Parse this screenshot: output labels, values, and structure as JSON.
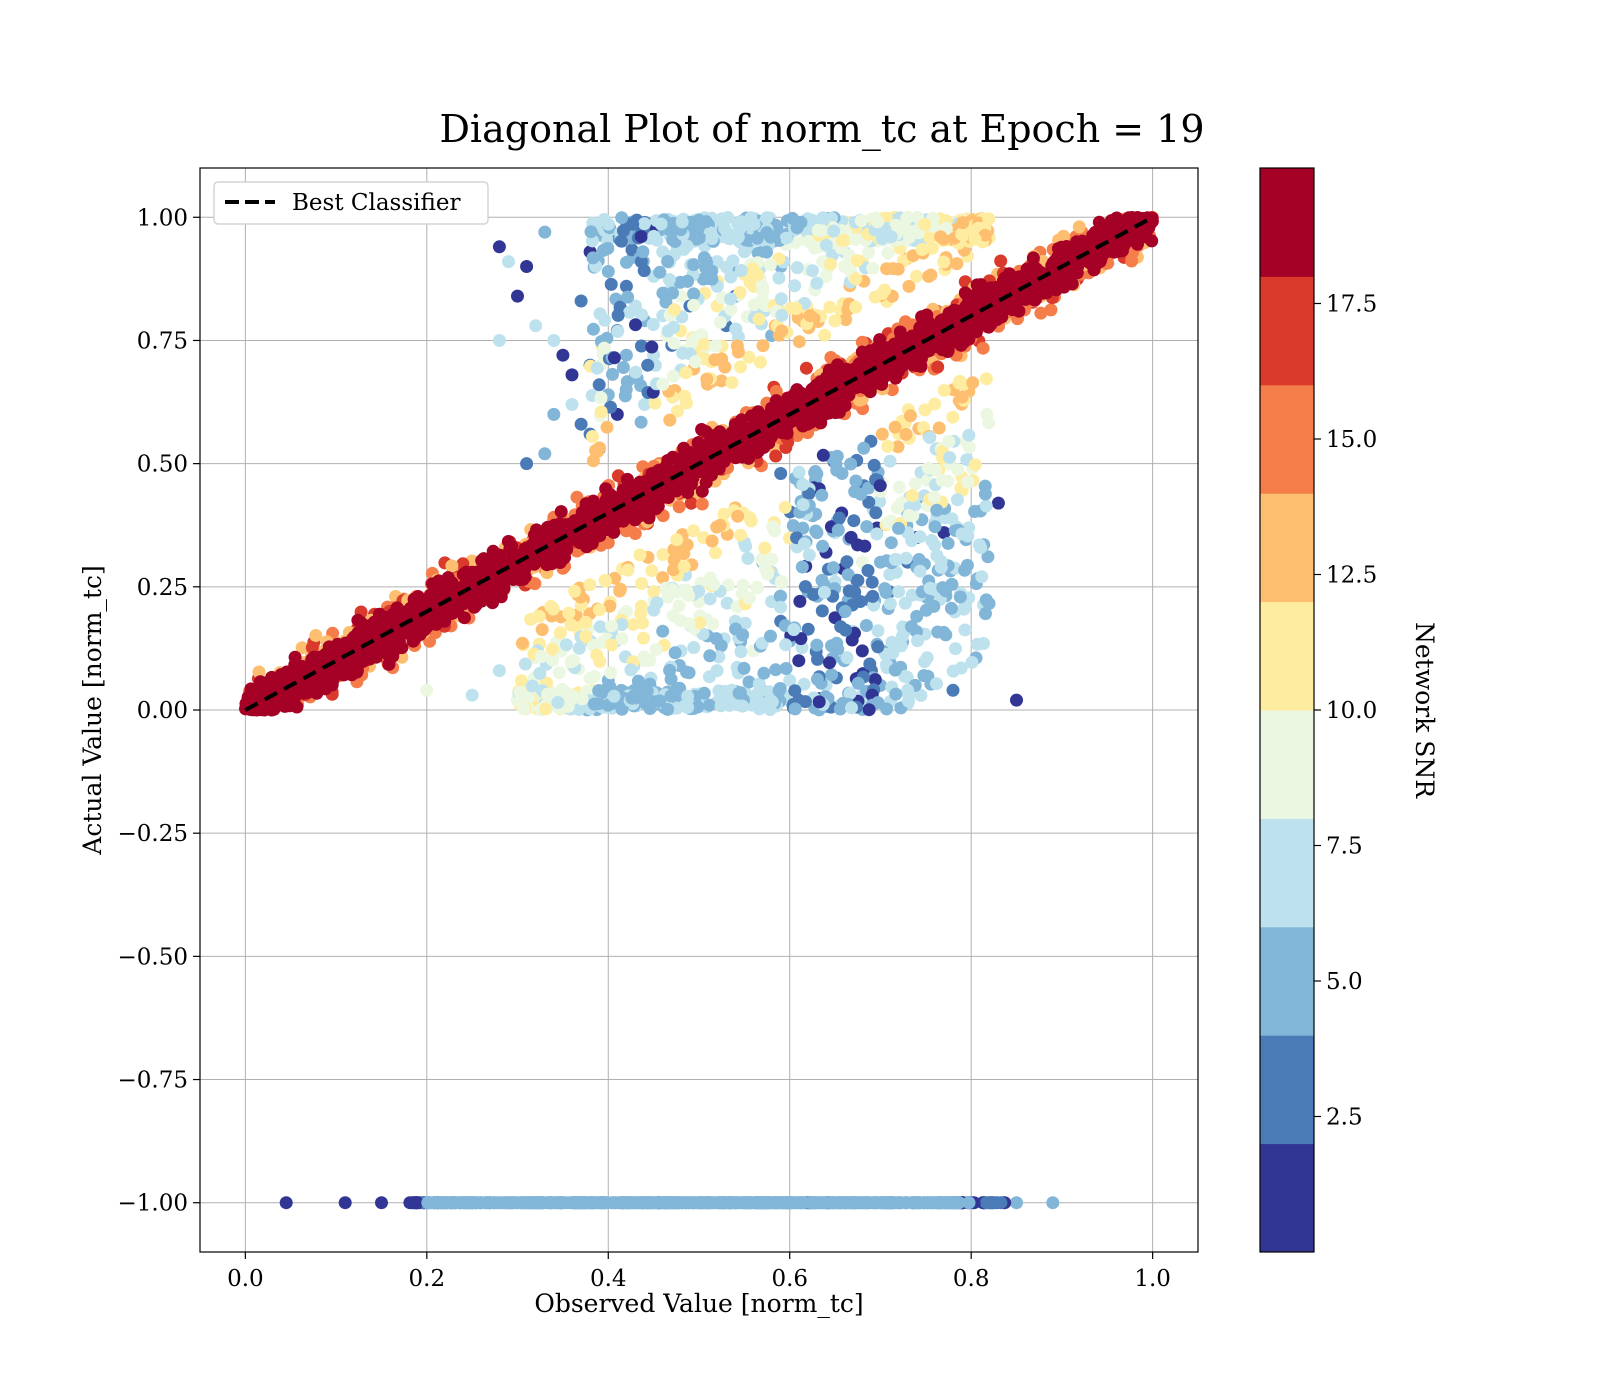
{
  "chart_data": {
    "type": "scatter",
    "title": "Diagonal Plot of norm_tc at Epoch = 19",
    "xlabel": "Observed Value [norm_tc]",
    "ylabel": "Actual Value [norm_tc]",
    "xlim": [
      -0.05,
      1.05
    ],
    "ylim": [
      -1.1,
      1.1
    ],
    "xticks": [
      0.0,
      0.2,
      0.4,
      0.6,
      0.8,
      1.0
    ],
    "xtick_labels": [
      "0.0",
      "0.2",
      "0.4",
      "0.6",
      "0.8",
      "1.0"
    ],
    "yticks": [
      1.0,
      0.75,
      0.5,
      0.25,
      0.0,
      -0.25,
      -0.5,
      -0.75,
      -1.0
    ],
    "ytick_labels": [
      "1.00",
      "0.75",
      "0.50",
      "0.25",
      "0.00",
      "−0.25",
      "−0.50",
      "−0.75",
      "−1.00"
    ],
    "grid": true,
    "legend": {
      "location": "top-left",
      "entries": [
        {
          "label": "Best Classifier",
          "style": "dashed",
          "color": "#000000"
        }
      ]
    },
    "reference_line": {
      "label": "Best Classifier",
      "x": [
        0.0,
        1.0
      ],
      "y": [
        0.0,
        1.0
      ]
    },
    "colorbar": {
      "label": "Network SNR",
      "range": [
        0,
        20
      ],
      "ticks": [
        2.5,
        5.0,
        7.5,
        10.0,
        12.5,
        15.0,
        17.5
      ],
      "tick_labels": [
        "2.5",
        "5.0",
        "7.5",
        "10.0",
        "12.5",
        "15.0",
        "17.5"
      ],
      "bins": [
        {
          "from": 0,
          "to": 2,
          "color": "#313695"
        },
        {
          "from": 2,
          "to": 4,
          "color": "#4a7bb7"
        },
        {
          "from": 4,
          "to": 6,
          "color": "#82b6d8"
        },
        {
          "from": 6,
          "to": 8,
          "color": "#bde2ee"
        },
        {
          "from": 8,
          "to": 10,
          "color": "#ecf7e2"
        },
        {
          "from": 10,
          "to": 12,
          "color": "#feeda1"
        },
        {
          "from": 12,
          "to": 14,
          "color": "#fdbf6f"
        },
        {
          "from": 14,
          "to": 16,
          "color": "#f57d4a"
        },
        {
          "from": 16,
          "to": 18,
          "color": "#d93a2b"
        },
        {
          "from": 18,
          "to": 20,
          "color": "#a50026"
        }
      ]
    },
    "series": [
      {
        "points": [
          [
            0.28,
            0.94
          ],
          [
            0.29,
            0.91
          ],
          [
            0.31,
            0.9
          ],
          [
            0.32,
            0.78
          ],
          [
            0.33,
            0.97
          ],
          [
            0.34,
            0.75
          ],
          [
            0.35,
            0.72
          ],
          [
            0.36,
            0.62
          ],
          [
            0.37,
            0.58
          ],
          [
            0.38,
            0.56
          ],
          [
            0.39,
            0.53
          ],
          [
            0.33,
            0.52
          ],
          [
            0.31,
            0.5
          ],
          [
            0.36,
            0.68
          ],
          [
            0.38,
            0.7
          ],
          [
            0.4,
            0.64
          ],
          [
            0.41,
            0.6
          ],
          [
            0.42,
            0.86
          ],
          [
            0.43,
            0.82
          ],
          [
            0.44,
            0.79
          ],
          [
            0.45,
            0.88
          ],
          [
            0.46,
            0.93
          ],
          [
            0.47,
            0.74
          ],
          [
            0.48,
            0.69
          ],
          [
            0.5,
            0.96
          ],
          [
            0.52,
            0.91
          ],
          [
            0.54,
            0.84
          ],
          [
            0.56,
            0.8
          ],
          [
            0.58,
            0.76
          ],
          [
            0.6,
            0.97
          ],
          [
            0.63,
            0.95
          ],
          [
            0.66,
            0.93
          ],
          [
            0.69,
            0.97
          ],
          [
            0.72,
            0.96
          ],
          [
            0.28,
            0.75
          ],
          [
            0.3,
            0.84
          ],
          [
            0.34,
            0.6
          ],
          [
            0.39,
            0.66
          ],
          [
            0.42,
            0.72
          ],
          [
            0.44,
            0.62
          ],
          [
            0.47,
            0.86
          ],
          [
            0.49,
            0.82
          ],
          [
            0.51,
            0.89
          ],
          [
            0.53,
            0.78
          ],
          [
            0.55,
            0.93
          ],
          [
            0.57,
            0.86
          ],
          [
            0.59,
            0.9
          ],
          [
            0.61,
            0.82
          ],
          [
            0.64,
            0.88
          ],
          [
            0.68,
            0.91
          ],
          [
            0.37,
            0.83
          ],
          [
            0.38,
            0.93
          ],
          [
            0.4,
            0.89
          ],
          [
            0.41,
            0.77
          ],
          [
            0.43,
            0.68
          ],
          [
            0.45,
            0.72
          ],
          [
            0.46,
            0.8
          ],
          [
            0.48,
            0.84
          ],
          [
            0.5,
            0.88
          ],
          [
            0.52,
            0.82
          ],
          [
            0.55,
            0.34
          ],
          [
            0.57,
            0.3
          ],
          [
            0.58,
            0.22
          ],
          [
            0.59,
            0.18
          ],
          [
            0.6,
            0.14
          ],
          [
            0.61,
            0.1
          ],
          [
            0.62,
            0.4
          ],
          [
            0.63,
            0.36
          ],
          [
            0.64,
            0.32
          ],
          [
            0.65,
            0.26
          ],
          [
            0.66,
            0.2
          ],
          [
            0.67,
            0.16
          ],
          [
            0.68,
            0.12
          ],
          [
            0.69,
            0.08
          ],
          [
            0.7,
            0.3
          ],
          [
            0.71,
            0.24
          ],
          [
            0.72,
            0.37
          ],
          [
            0.73,
            0.4
          ],
          [
            0.74,
            0.35
          ],
          [
            0.75,
            0.42
          ],
          [
            0.76,
            0.38
          ],
          [
            0.77,
            0.36
          ],
          [
            0.78,
            0.04
          ],
          [
            0.83,
            0.42
          ],
          [
            0.85,
            0.02
          ],
          [
            0.74,
            0.19
          ],
          [
            0.7,
            0.05
          ],
          [
            0.64,
            0.05
          ],
          [
            0.61,
            0.02
          ],
          [
            0.56,
            0.01
          ],
          [
            0.5,
            0.02
          ],
          [
            0.45,
            0.01
          ],
          [
            0.4,
            0.02
          ],
          [
            0.35,
            0.01
          ],
          [
            0.3,
            0.02
          ],
          [
            0.25,
            0.03
          ],
          [
            0.2,
            0.04
          ],
          [
            0.52,
            0.08
          ],
          [
            0.48,
            0.12
          ],
          [
            0.44,
            0.1
          ],
          [
            0.4,
            0.06
          ],
          [
            0.36,
            0.09
          ],
          [
            0.33,
            0.05
          ],
          [
            0.28,
            0.08
          ],
          [
            0.54,
            0.18
          ],
          [
            0.5,
            0.22
          ],
          [
            0.46,
            0.16
          ],
          [
            0.42,
            0.2
          ],
          [
            0.38,
            0.14
          ],
          [
            0.58,
            0.28
          ],
          [
            0.56,
            0.12
          ],
          [
            0.62,
            0.24
          ],
          [
            0.6,
            0.06
          ],
          [
            0.66,
            0.1
          ],
          [
            0.68,
            0.3
          ],
          [
            0.65,
            0.36
          ],
          [
            0.62,
            0.44
          ],
          [
            0.59,
            0.48
          ],
          [
            0.72,
            0.24
          ],
          [
            0.73,
            0.3
          ]
        ],
        "snr": [
          1,
          6,
          1,
          6,
          4,
          6,
          1,
          7,
          3,
          2,
          1,
          4,
          3,
          1,
          2,
          5,
          1,
          3,
          6,
          5,
          6,
          7,
          2,
          6,
          5,
          7,
          3,
          6,
          4,
          7,
          8,
          7,
          9,
          10,
          6,
          1,
          4,
          3,
          5,
          6,
          7,
          2,
          8,
          3,
          6,
          9,
          4,
          8,
          9,
          10,
          3,
          1,
          5,
          2,
          4,
          7,
          6,
          8,
          9,
          11,
          7,
          5,
          6,
          2,
          4,
          1,
          3,
          5,
          1,
          7,
          2,
          6,
          1,
          3,
          4,
          2,
          6,
          5,
          1,
          1,
          7,
          1,
          2,
          1,
          1,
          4,
          5,
          6,
          3,
          6,
          7,
          5,
          8,
          6,
          9,
          7,
          8,
          6,
          7,
          8,
          5,
          9,
          6,
          7,
          6,
          8,
          5,
          8,
          7,
          6,
          9,
          4,
          6,
          4,
          8,
          7,
          5,
          3,
          6,
          2
        ],
        "band_description": "dense high-SNR cluster around y = x from x 0.0 to 1.0"
      },
      {
        "name": "",
        "y": -1.0,
        "x_range": [
          0.05,
          0.89
        ],
        "dense_x_range": [
          0.18,
          0.84
        ],
        "outliers_x": [
          0.045,
          0.11,
          0.15,
          0.85,
          0.89
        ]
      }
    ]
  }
}
